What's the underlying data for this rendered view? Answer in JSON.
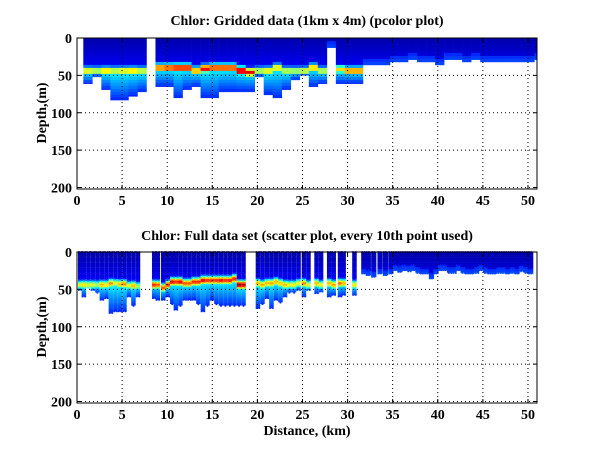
{
  "chart_data": [
    {
      "type": "heatmap",
      "title": "Chlor: Gridded data (1km x 4m) (pcolor plot)",
      "xlabel": "",
      "ylabel": "Depth,(m)",
      "xlim": [
        0,
        51
      ],
      "ylim": [
        0,
        202
      ],
      "y_reversed": true,
      "xticks": [
        0,
        5,
        10,
        15,
        20,
        25,
        30,
        35,
        40,
        45,
        50
      ],
      "yticks": [
        0,
        50,
        100,
        150,
        200
      ],
      "grid": true,
      "colormap": "jet",
      "cell_size": {
        "dx_km": 1,
        "dz_m": 4
      },
      "columns_note": "[x_start_km, bottom_depth_m, chl_max_depth_m, chl_max_value_0to1]",
      "columns": [
        [
          0.7,
          61,
          44,
          0.65
        ],
        [
          1.7,
          52,
          44,
          0.6
        ],
        [
          2.7,
          69,
          44,
          0.7
        ],
        [
          3.7,
          83,
          44,
          0.62
        ],
        [
          4.7,
          83,
          44,
          0.66
        ],
        [
          5.7,
          78,
          44,
          0.7
        ],
        [
          6.7,
          72,
          44,
          0.62
        ],
        [
          8.7,
          65,
          40,
          0.8
        ],
        [
          9.7,
          65,
          40,
          0.85
        ],
        [
          10.7,
          80,
          40,
          0.9
        ],
        [
          11.7,
          69,
          40,
          0.9
        ],
        [
          12.7,
          65,
          44,
          0.75
        ],
        [
          13.7,
          80,
          41,
          0.9
        ],
        [
          14.7,
          80,
          40,
          0.86
        ],
        [
          15.7,
          72,
          40,
          0.86
        ],
        [
          16.7,
          72,
          40,
          0.86
        ],
        [
          17.7,
          72,
          44,
          0.98
        ],
        [
          18.7,
          72,
          46,
          0.9
        ],
        [
          19.7,
          52,
          44,
          0.6
        ],
        [
          20.7,
          76,
          44,
          0.66
        ],
        [
          21.7,
          80,
          40,
          0.66
        ],
        [
          22.7,
          69,
          44,
          0.6
        ],
        [
          23.7,
          56,
          44,
          0.58
        ],
        [
          24.7,
          50,
          44,
          0.62
        ],
        [
          25.7,
          65,
          40,
          0.72
        ],
        [
          26.7,
          61,
          44,
          0.6
        ],
        [
          27.7,
          13,
          0,
          0
        ],
        [
          28.7,
          61,
          42,
          0.66
        ],
        [
          29.7,
          61,
          44,
          0.78
        ],
        [
          30.7,
          61,
          44,
          0.78
        ],
        [
          31.7,
          36,
          0,
          0
        ],
        [
          32.7,
          36,
          0,
          0
        ],
        [
          33.7,
          36,
          0,
          0
        ],
        [
          34.7,
          32,
          0,
          0
        ],
        [
          35.7,
          32,
          0,
          0
        ],
        [
          36.7,
          29,
          0,
          0
        ],
        [
          37.7,
          32,
          0,
          0
        ],
        [
          38.7,
          32,
          0,
          0
        ],
        [
          39.7,
          36,
          0,
          0
        ],
        [
          40.7,
          29,
          0,
          0
        ],
        [
          41.7,
          29,
          0,
          0
        ],
        [
          42.7,
          32,
          0,
          0
        ],
        [
          43.7,
          29,
          0,
          0
        ],
        [
          44.7,
          32,
          0,
          0
        ],
        [
          45.7,
          32,
          0,
          0
        ],
        [
          46.7,
          32,
          0,
          0
        ],
        [
          47.7,
          32,
          0,
          0
        ],
        [
          48.7,
          32,
          0,
          0
        ],
        [
          49.7,
          32,
          0,
          0
        ],
        [
          50.7,
          29,
          0,
          0
        ]
      ]
    },
    {
      "type": "scatter",
      "title": "Chlor: Full data set (scatter plot, every 10th point used)",
      "xlabel": "Distance, (km)",
      "ylabel": "Depth,(m)",
      "xlim": [
        0,
        51
      ],
      "ylim": [
        0,
        202
      ],
      "y_reversed": true,
      "xticks": [
        0,
        5,
        10,
        15,
        20,
        25,
        30,
        35,
        40,
        45,
        50
      ],
      "yticks": [
        0,
        50,
        100,
        150,
        200
      ],
      "grid": true,
      "colormap": "jet",
      "casts_note": "[x_km, bottom_depth_m, chl_max_depth_m, chl_max_value_0to1]",
      "casts": [
        [
          0.2,
          52,
          44,
          0.6
        ],
        [
          0.6,
          60,
          44,
          0.65
        ],
        [
          1.1,
          48,
          44,
          0.6
        ],
        [
          1.6,
          52,
          44,
          0.6
        ],
        [
          2.1,
          55,
          44,
          0.55
        ],
        [
          2.6,
          65,
          44,
          0.7
        ],
        [
          3.1,
          62,
          44,
          0.65
        ],
        [
          3.6,
          82,
          42,
          0.75
        ],
        [
          4.1,
          80,
          42,
          0.6
        ],
        [
          4.6,
          80,
          43,
          0.7
        ],
        [
          5.1,
          80,
          43,
          0.75
        ],
        [
          5.6,
          60,
          45,
          0.6
        ],
        [
          6.1,
          72,
          45,
          0.7
        ],
        [
          6.6,
          60,
          46,
          0.55
        ],
        [
          8.4,
          62,
          44,
          0.85
        ],
        [
          8.8,
          64,
          44,
          0.8
        ],
        [
          9.4,
          64,
          48,
          0.8
        ],
        [
          9.9,
          60,
          44,
          0.85
        ],
        [
          10.4,
          70,
          40,
          0.9
        ],
        [
          10.8,
          78,
          40,
          0.85
        ],
        [
          11.3,
          72,
          40,
          0.9
        ],
        [
          11.8,
          65,
          42,
          0.8
        ],
        [
          12.3,
          64,
          42,
          0.8
        ],
        [
          12.8,
          64,
          40,
          0.85
        ],
        [
          13.3,
          70,
          40,
          0.85
        ],
        [
          13.8,
          80,
          38,
          0.9
        ],
        [
          14.3,
          72,
          38,
          0.85
        ],
        [
          14.8,
          65,
          38,
          0.85
        ],
        [
          15.3,
          70,
          38,
          0.85
        ],
        [
          15.8,
          72,
          38,
          0.88
        ],
        [
          16.3,
          72,
          38,
          0.85
        ],
        [
          16.8,
          72,
          38,
          0.86
        ],
        [
          17.3,
          72,
          36,
          0.86
        ],
        [
          17.8,
          72,
          44,
          0.98
        ],
        [
          18.3,
          72,
          44,
          0.95
        ],
        [
          19.9,
          75,
          42,
          0.7
        ],
        [
          20.4,
          70,
          44,
          0.72
        ],
        [
          20.9,
          62,
          42,
          0.7
        ],
        [
          21.4,
          76,
          42,
          0.72
        ],
        [
          21.9,
          65,
          40,
          0.7
        ],
        [
          22.4,
          68,
          42,
          0.68
        ],
        [
          22.9,
          60,
          44,
          0.7
        ],
        [
          23.4,
          55,
          44,
          0.62
        ],
        [
          23.9,
          55,
          44,
          0.62
        ],
        [
          24.4,
          52,
          42,
          0.62
        ],
        [
          25.0,
          60,
          42,
          0.75
        ],
        [
          25.5,
          52,
          44,
          0.6
        ],
        [
          26.4,
          56,
          42,
          0.7
        ],
        [
          26.9,
          54,
          44,
          0.62
        ],
        [
          27.8,
          60,
          42,
          0.7
        ],
        [
          28.3,
          58,
          44,
          0.72
        ],
        [
          29.0,
          60,
          42,
          0.78
        ],
        [
          29.4,
          58,
          42,
          0.7
        ],
        [
          30.6,
          58,
          44,
          0.65
        ],
        [
          31.6,
          30,
          0,
          0
        ],
        [
          32.1,
          32,
          0,
          0
        ],
        [
          32.7,
          34,
          0,
          0
        ],
        [
          33.4,
          30,
          0,
          0
        ],
        [
          34.0,
          32,
          0,
          0
        ],
        [
          34.6,
          30,
          0,
          0
        ],
        [
          35.1,
          25,
          0,
          0
        ],
        [
          35.6,
          27,
          0,
          0
        ],
        [
          36.1,
          25,
          0,
          0
        ],
        [
          36.6,
          26,
          0,
          0
        ],
        [
          37.1,
          25,
          0,
          0
        ],
        [
          37.6,
          28,
          0,
          0
        ],
        [
          38.1,
          30,
          0,
          0
        ],
        [
          38.6,
          30,
          0,
          0
        ],
        [
          39.1,
          36,
          0,
          0
        ],
        [
          39.6,
          30,
          0,
          0
        ],
        [
          40.1,
          25,
          0,
          0
        ],
        [
          40.6,
          25,
          0,
          0
        ],
        [
          41.1,
          28,
          0,
          0
        ],
        [
          41.6,
          28,
          0,
          0
        ],
        [
          42.1,
          25,
          0,
          0
        ],
        [
          42.6,
          28,
          0,
          0
        ],
        [
          43.1,
          30,
          0,
          0
        ],
        [
          43.6,
          30,
          0,
          0
        ],
        [
          44.1,
          28,
          0,
          0
        ],
        [
          44.6,
          25,
          0,
          0
        ],
        [
          45.1,
          28,
          0,
          0
        ],
        [
          45.6,
          30,
          0,
          0
        ],
        [
          46.1,
          30,
          0,
          0
        ],
        [
          46.6,
          28,
          0,
          0
        ],
        [
          47.1,
          28,
          0,
          0
        ],
        [
          47.6,
          30,
          0,
          0
        ],
        [
          48.1,
          28,
          0,
          0
        ],
        [
          48.6,
          30,
          0,
          0
        ],
        [
          49.1,
          26,
          0,
          0
        ],
        [
          49.6,
          28,
          0,
          0
        ],
        [
          50.1,
          30,
          0,
          0
        ]
      ]
    }
  ]
}
